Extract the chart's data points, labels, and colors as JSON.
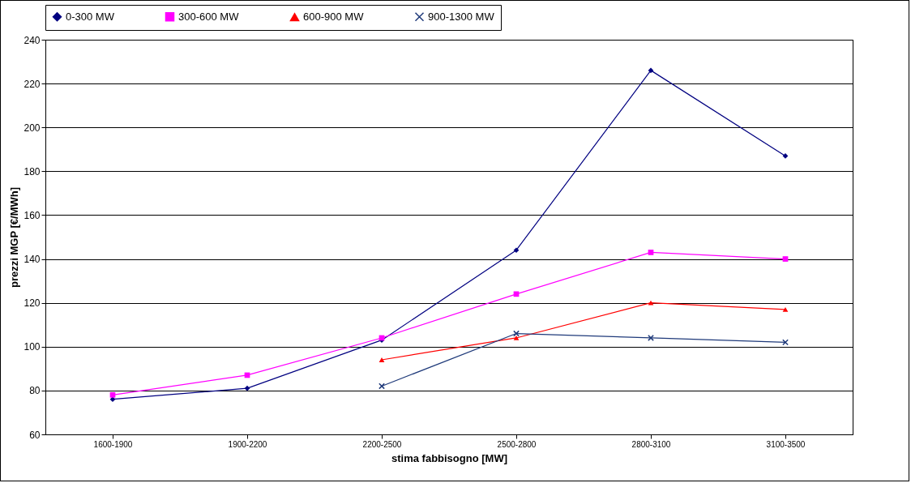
{
  "chart_data": {
    "type": "line",
    "xlabel": "stima fabbisogno  [MW]",
    "ylabel": "prezzi MGP [€/MWh]",
    "categories": [
      "1600-1900",
      "1900-2200",
      "2200-2500",
      "2500-2800",
      "2800-3100",
      "3100-3500"
    ],
    "series": [
      {
        "name": "0-300 MW",
        "color": "#000080",
        "marker": "diamond",
        "values": [
          76,
          81,
          103,
          144,
          226,
          187
        ]
      },
      {
        "name": "300-600 MW",
        "color": "#ff00ff",
        "marker": "square",
        "values": [
          78,
          87,
          104,
          124,
          143,
          140
        ]
      },
      {
        "name": "600-900 MW",
        "color": "#ff0000",
        "marker": "triangle",
        "values": [
          null,
          null,
          94,
          104,
          120,
          117
        ]
      },
      {
        "name": "900-1300 MW",
        "color": "#1f3a7a",
        "marker": "cross",
        "values": [
          null,
          null,
          82,
          106,
          104,
          102
        ]
      }
    ],
    "ylim": [
      60,
      240
    ],
    "yticks": [
      60,
      80,
      100,
      120,
      140,
      160,
      180,
      200,
      220,
      240
    ],
    "grid": "y",
    "legend": "top",
    "line_style": "solid"
  }
}
